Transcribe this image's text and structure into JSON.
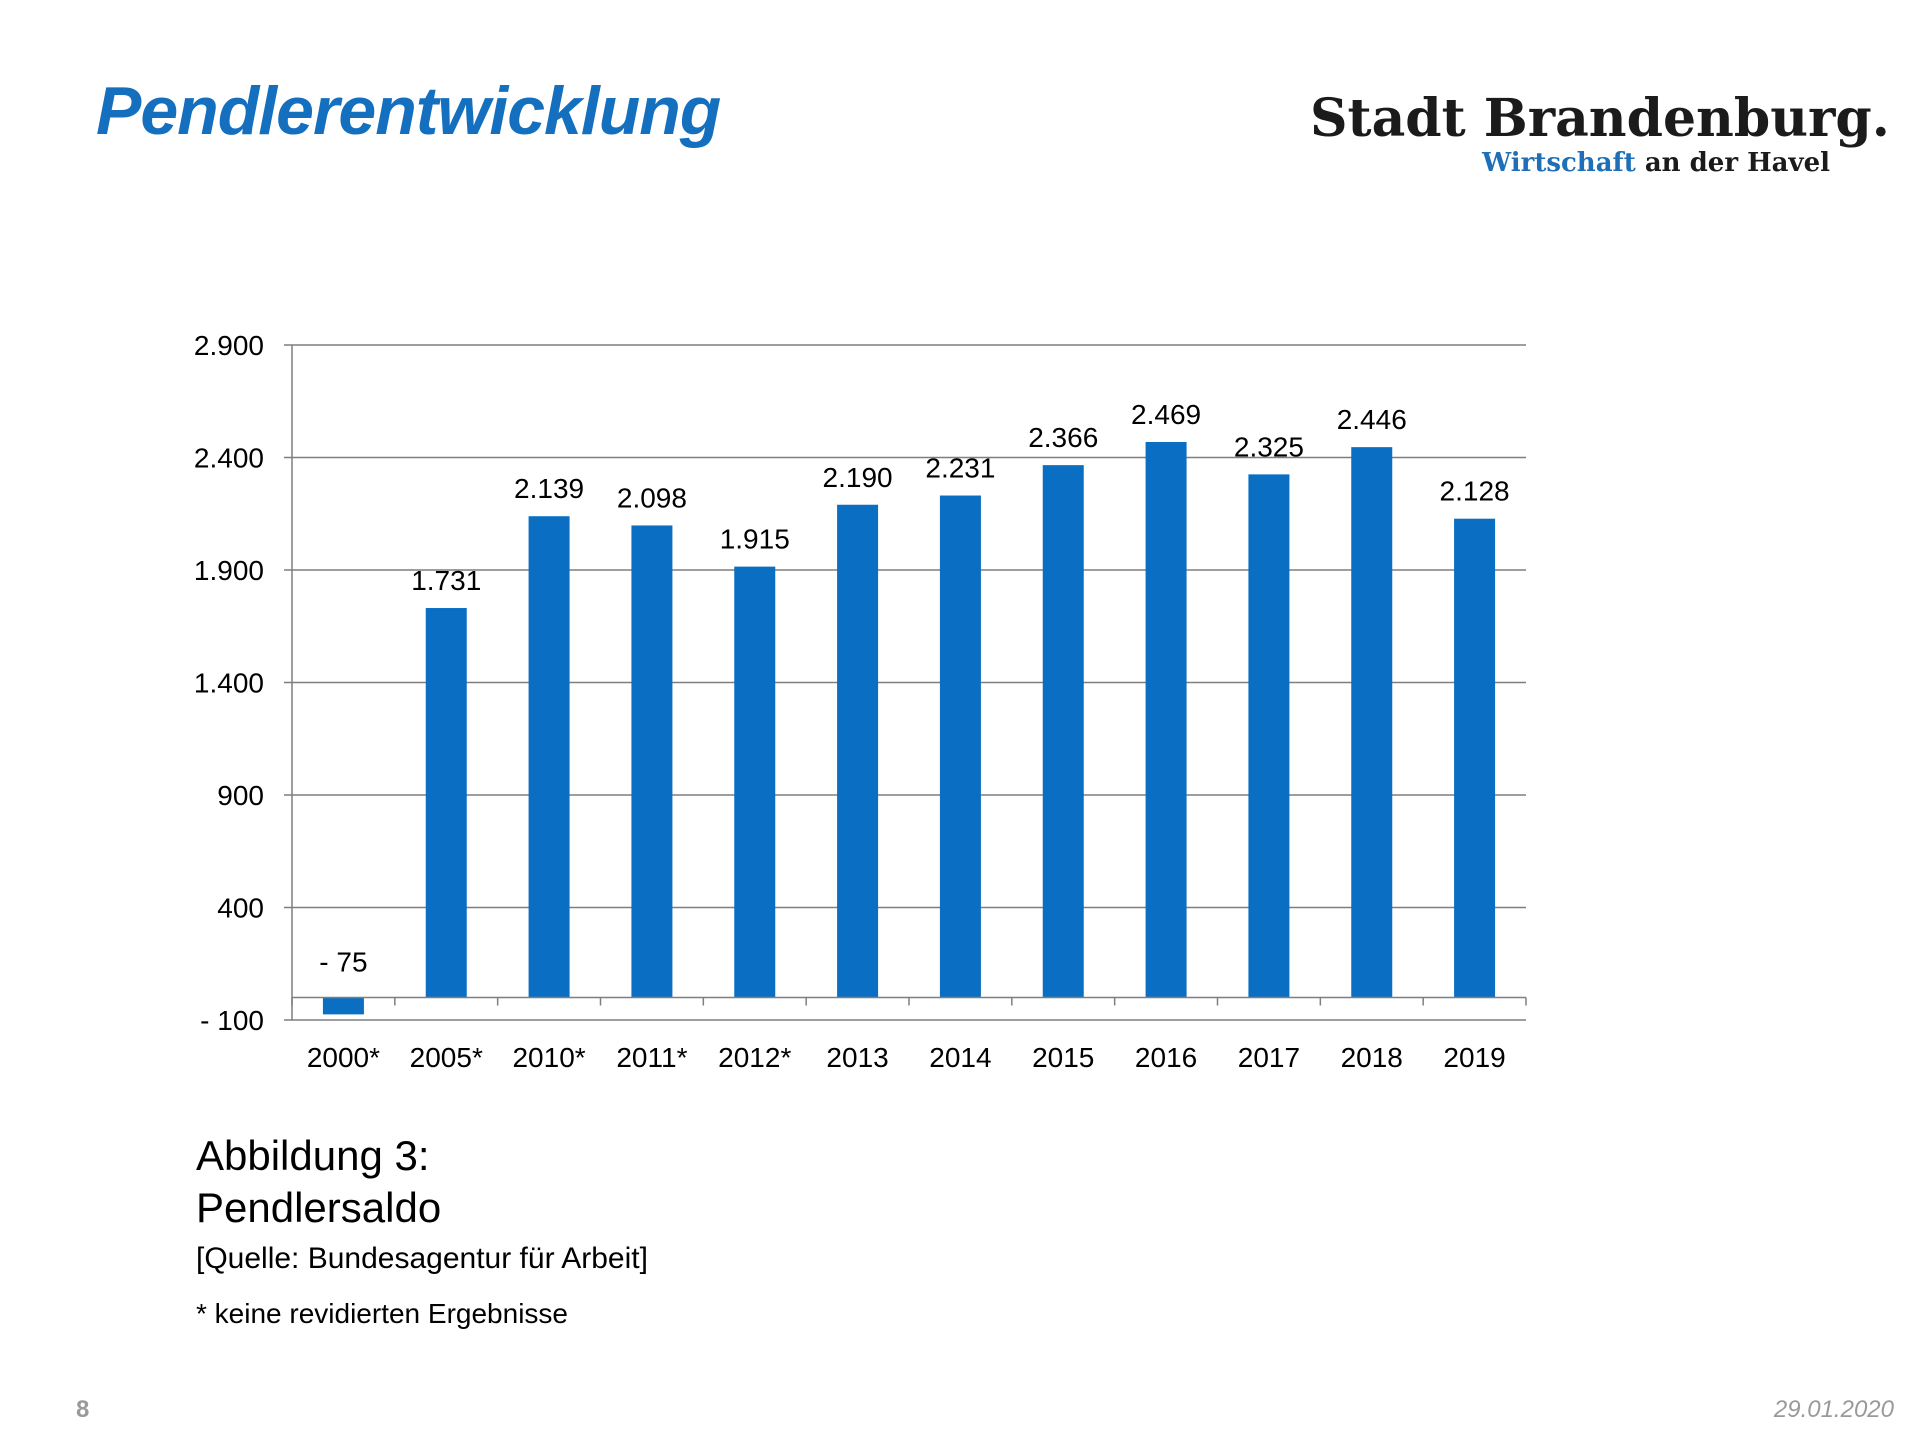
{
  "header": {
    "title": "Pendlerentwicklung",
    "logo_main": "Stadt Brandenburg.",
    "logo_sub_accent": "Wirtschaft",
    "logo_sub_rest": "an der Havel"
  },
  "colors": {
    "bar": "#0a6fc2",
    "title": "#1470be",
    "grid": "#7f7f7f"
  },
  "chart_data": {
    "type": "bar",
    "title": "",
    "xlabel": "",
    "ylabel": "",
    "categories": [
      "2000*",
      "2005*",
      "2010*",
      "2011*",
      "2012*",
      "2013",
      "2014",
      "2015",
      "2016",
      "2017",
      "2018",
      "2019"
    ],
    "values": [
      -75,
      1731,
      2139,
      2098,
      1915,
      2190,
      2231,
      2366,
      2469,
      2325,
      2446,
      2128
    ],
    "value_labels": [
      "- 75",
      "1.731",
      "2.139",
      "2.098",
      "1.915",
      "2.190",
      "2.231",
      "2.366",
      "2.469",
      "2.325",
      "2.446",
      "2.128"
    ],
    "ylim": [
      -100,
      2900
    ],
    "yticks": [
      -100,
      400,
      900,
      1400,
      1900,
      2400,
      2900
    ],
    "ytick_labels": [
      "- 100",
      "400",
      "900",
      "1.400",
      "1.900",
      "2.400",
      "2.900"
    ],
    "grid": true,
    "legend": "none"
  },
  "caption": {
    "line1": "Abbildung 3:",
    "line2": "Pendlersaldo",
    "source": "[Quelle: Bundesagentur für Arbeit]",
    "note": "* keine revidierten Ergebnisse"
  },
  "footer": {
    "page_number": "8",
    "date": "29.01.2020"
  }
}
